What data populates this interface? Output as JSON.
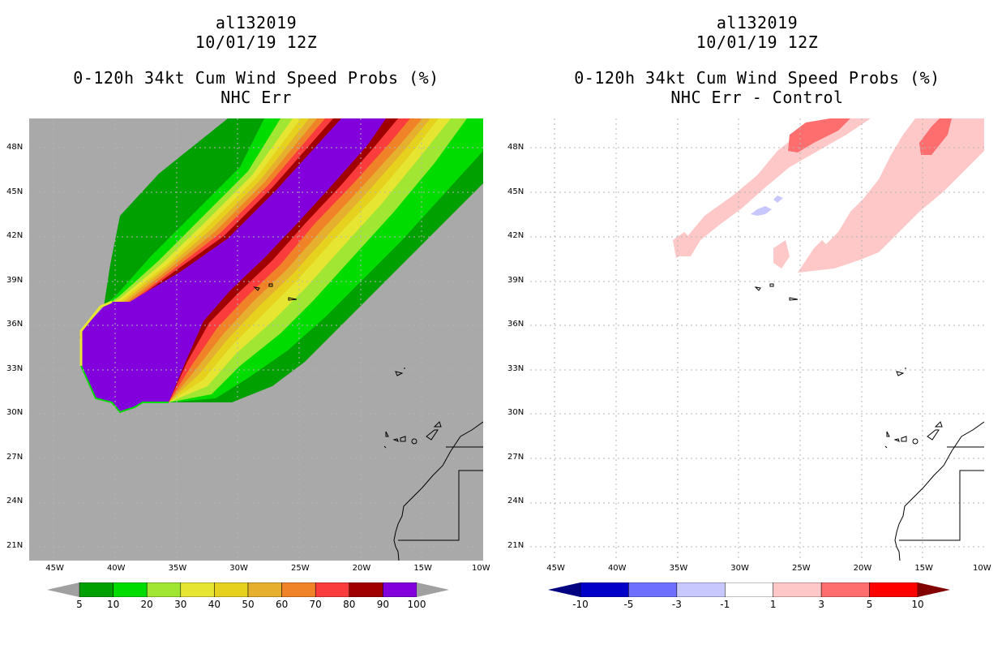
{
  "panels": [
    {
      "storm": "al132019",
      "datetime": "10/01/19 12Z",
      "title": "0-120h 34kt Cum Wind Speed Probs (%)",
      "subtitle": "NHC Err"
    },
    {
      "storm": "al132019",
      "datetime": "10/01/19 12Z",
      "title": "0-120h 34kt Cum Wind Speed Probs (%)",
      "subtitle": "NHC Err - Control"
    }
  ],
  "axes": {
    "lat_labels": [
      "48N",
      "45N",
      "42N",
      "39N",
      "36N",
      "33N",
      "30N",
      "27N",
      "24N",
      "21N"
    ],
    "lon_labels": [
      "45W",
      "40W",
      "35W",
      "30W",
      "25W",
      "20W",
      "15W",
      "10W"
    ],
    "lat_values": [
      48,
      45,
      42,
      39,
      36,
      33,
      30,
      27,
      24,
      21
    ],
    "lon_values": [
      -45,
      -40,
      -35,
      -30,
      -25,
      -20,
      -15,
      -10
    ],
    "lon_range": [
      -47,
      -10
    ],
    "lat_range": [
      20,
      50
    ]
  },
  "colorbar_left": {
    "labels": [
      "5",
      "10",
      "20",
      "30",
      "40",
      "50",
      "60",
      "70",
      "80",
      "90",
      "100"
    ],
    "colors": [
      "#00a000",
      "#00dc00",
      "#a0e632",
      "#e6e632",
      "#e6d21e",
      "#e6af2d",
      "#f08228",
      "#fa3c3c",
      "#a00000",
      "#8200dc"
    ],
    "under_color": "#a0a0a0",
    "over_color": "#a0a0a0"
  },
  "colorbar_right": {
    "labels": [
      "-10",
      "-5",
      "-3",
      "-1",
      "1",
      "3",
      "5",
      "10"
    ],
    "colors": [
      "#0000c8",
      "#6e6eff",
      "#c8c8ff",
      "#ffffff",
      "#ffc8c8",
      "#ff6e6e",
      "#ff0000"
    ],
    "under_color": "#000082",
    "over_color": "#820000"
  },
  "colors": {
    "ocean_left": "#a9a9a9",
    "core": "#8200dc",
    "grid": "#b4b4b4"
  }
}
